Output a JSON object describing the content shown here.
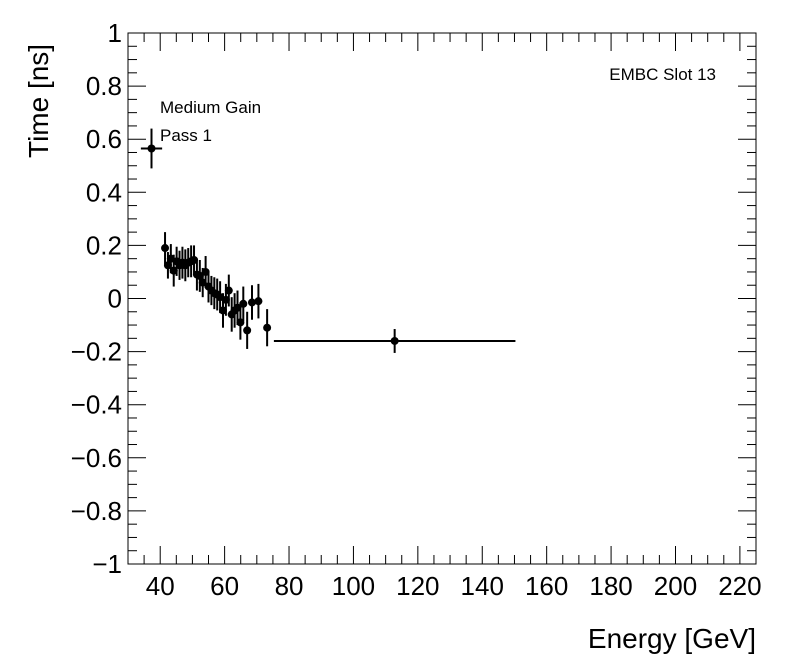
{
  "chart_data": {
    "type": "scatter",
    "xlabel": "Energy [GeV]",
    "ylabel": "Time [ns]",
    "xlim": [
      30,
      225
    ],
    "ylim": [
      -1,
      1
    ],
    "x_ticks": [
      40,
      60,
      80,
      100,
      120,
      140,
      160,
      180,
      200,
      220
    ],
    "y_ticks": [
      -1,
      -0.8,
      -0.6,
      -0.4,
      -0.2,
      0,
      0.2,
      0.4,
      0.6,
      0.8,
      1
    ],
    "x_tick_labels": [
      "40",
      "60",
      "80",
      "100",
      "120",
      "140",
      "160",
      "180",
      "200",
      "220"
    ],
    "y_tick_labels": [
      "−1",
      "−0.8",
      "−0.6",
      "−0.4",
      "−0.2",
      "0",
      "0.2",
      "0.4",
      "0.6",
      "0.8",
      "1"
    ],
    "grid": false,
    "annotations": {
      "top_right": "EMBC Slot 13",
      "gain": "Medium Gain",
      "pass": "Pass 1"
    },
    "points": [
      {
        "x": 37.3,
        "y": 0.565,
        "xerr": 3.3,
        "yerr": 0.075
      },
      {
        "x": 41.5,
        "y": 0.19,
        "xerr": 0.4,
        "yerr": 0.06
      },
      {
        "x": 42.4,
        "y": 0.125,
        "xerr": 0.4,
        "yerr": 0.05
      },
      {
        "x": 43.3,
        "y": 0.15,
        "xerr": 0.4,
        "yerr": 0.055
      },
      {
        "x": 44.2,
        "y": 0.105,
        "xerr": 0.4,
        "yerr": 0.06
      },
      {
        "x": 45.1,
        "y": 0.14,
        "xerr": 0.4,
        "yerr": 0.055
      },
      {
        "x": 46.0,
        "y": 0.125,
        "xerr": 0.4,
        "yerr": 0.055
      },
      {
        "x": 46.9,
        "y": 0.135,
        "xerr": 0.4,
        "yerr": 0.06
      },
      {
        "x": 47.8,
        "y": 0.125,
        "xerr": 0.4,
        "yerr": 0.06
      },
      {
        "x": 48.7,
        "y": 0.135,
        "xerr": 0.4,
        "yerr": 0.055
      },
      {
        "x": 49.6,
        "y": 0.14,
        "xerr": 0.4,
        "yerr": 0.06
      },
      {
        "x": 50.5,
        "y": 0.145,
        "xerr": 0.4,
        "yerr": 0.055
      },
      {
        "x": 51.4,
        "y": 0.09,
        "xerr": 0.4,
        "yerr": 0.06
      },
      {
        "x": 52.3,
        "y": 0.085,
        "xerr": 0.4,
        "yerr": 0.06
      },
      {
        "x": 53.2,
        "y": 0.06,
        "xerr": 0.4,
        "yerr": 0.055
      },
      {
        "x": 54.1,
        "y": 0.1,
        "xerr": 0.4,
        "yerr": 0.06
      },
      {
        "x": 55.0,
        "y": 0.045,
        "xerr": 0.4,
        "yerr": 0.06
      },
      {
        "x": 55.9,
        "y": 0.03,
        "xerr": 0.4,
        "yerr": 0.055
      },
      {
        "x": 56.8,
        "y": 0.02,
        "xerr": 0.4,
        "yerr": 0.06
      },
      {
        "x": 57.7,
        "y": 0.015,
        "xerr": 0.4,
        "yerr": 0.06
      },
      {
        "x": 58.6,
        "y": 0.005,
        "xerr": 0.4,
        "yerr": 0.06
      },
      {
        "x": 59.5,
        "y": -0.045,
        "xerr": 0.4,
        "yerr": 0.065
      },
      {
        "x": 60.4,
        "y": -0.005,
        "xerr": 0.4,
        "yerr": 0.06
      },
      {
        "x": 61.3,
        "y": 0.03,
        "xerr": 0.4,
        "yerr": 0.06
      },
      {
        "x": 62.2,
        "y": -0.06,
        "xerr": 0.4,
        "yerr": 0.065
      },
      {
        "x": 63.1,
        "y": -0.045,
        "xerr": 0.4,
        "yerr": 0.065
      },
      {
        "x": 64.0,
        "y": -0.035,
        "xerr": 0.4,
        "yerr": 0.065
      },
      {
        "x": 64.9,
        "y": -0.09,
        "xerr": 0.4,
        "yerr": 0.065
      },
      {
        "x": 65.8,
        "y": -0.02,
        "xerr": 0.4,
        "yerr": 0.065
      },
      {
        "x": 67.0,
        "y": -0.12,
        "xerr": 0.5,
        "yerr": 0.07
      },
      {
        "x": 68.5,
        "y": -0.015,
        "xerr": 0.6,
        "yerr": 0.065
      },
      {
        "x": 70.5,
        "y": -0.01,
        "xerr": 0.8,
        "yerr": 0.065
      },
      {
        "x": 73.2,
        "y": -0.11,
        "xerr": 1.0,
        "yerr": 0.07
      },
      {
        "x": 112.8,
        "y": -0.16,
        "xerr": 37.5,
        "yerr": 0.045
      }
    ]
  }
}
